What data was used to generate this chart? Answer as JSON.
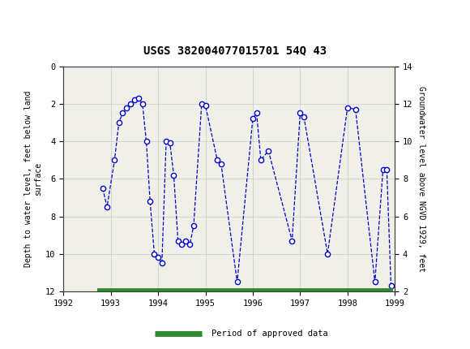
{
  "title": "USGS 382004077015701 54Q 43",
  "ylabel_left": "Depth to water level, feet below land\nsurface",
  "ylabel_right": "Groundwater level above NGVD 1929, feet",
  "xlim": [
    1992,
    1999
  ],
  "ylim_left": [
    0,
    12
  ],
  "xticks": [
    1992,
    1993,
    1994,
    1995,
    1996,
    1997,
    1998,
    1999
  ],
  "yticks_left": [
    0,
    2,
    4,
    6,
    8,
    10,
    12
  ],
  "yticks_right": [
    14,
    12,
    10,
    8,
    6,
    4,
    2
  ],
  "header_color": "#1b6b38",
  "plot_bg_color": "#f0f0e8",
  "line_color": "#0000cc",
  "green_bar_color": "#2e8b2e",
  "data_x": [
    1992.83,
    1992.92,
    1993.08,
    1993.17,
    1993.25,
    1993.33,
    1993.42,
    1993.5,
    1993.58,
    1993.67,
    1993.75,
    1993.83,
    1993.92,
    1994.0,
    1994.08,
    1994.17,
    1994.25,
    1994.33,
    1994.42,
    1994.5,
    1994.58,
    1994.67,
    1994.75,
    1994.92,
    1995.0,
    1995.25,
    1995.33,
    1995.67,
    1996.0,
    1996.08,
    1996.17,
    1996.33,
    1996.83,
    1997.0,
    1997.08,
    1997.58,
    1998.0,
    1998.17,
    1998.58,
    1998.75,
    1998.83,
    1998.92
  ],
  "data_y_depth": [
    6.5,
    7.5,
    5.0,
    3.0,
    2.5,
    2.2,
    2.0,
    1.8,
    1.7,
    2.0,
    4.0,
    7.2,
    10.0,
    10.2,
    10.5,
    4.0,
    4.1,
    5.8,
    9.3,
    9.5,
    9.3,
    9.5,
    8.5,
    2.0,
    2.1,
    5.0,
    5.2,
    11.5,
    2.8,
    2.5,
    5.0,
    4.5,
    9.3,
    2.5,
    2.7,
    10.0,
    2.2,
    2.3,
    11.5,
    5.5,
    5.5,
    11.7
  ],
  "approved_bar_start": 1992.72,
  "approved_bar_end": 1998.97,
  "approved_bar_y": 12.0
}
